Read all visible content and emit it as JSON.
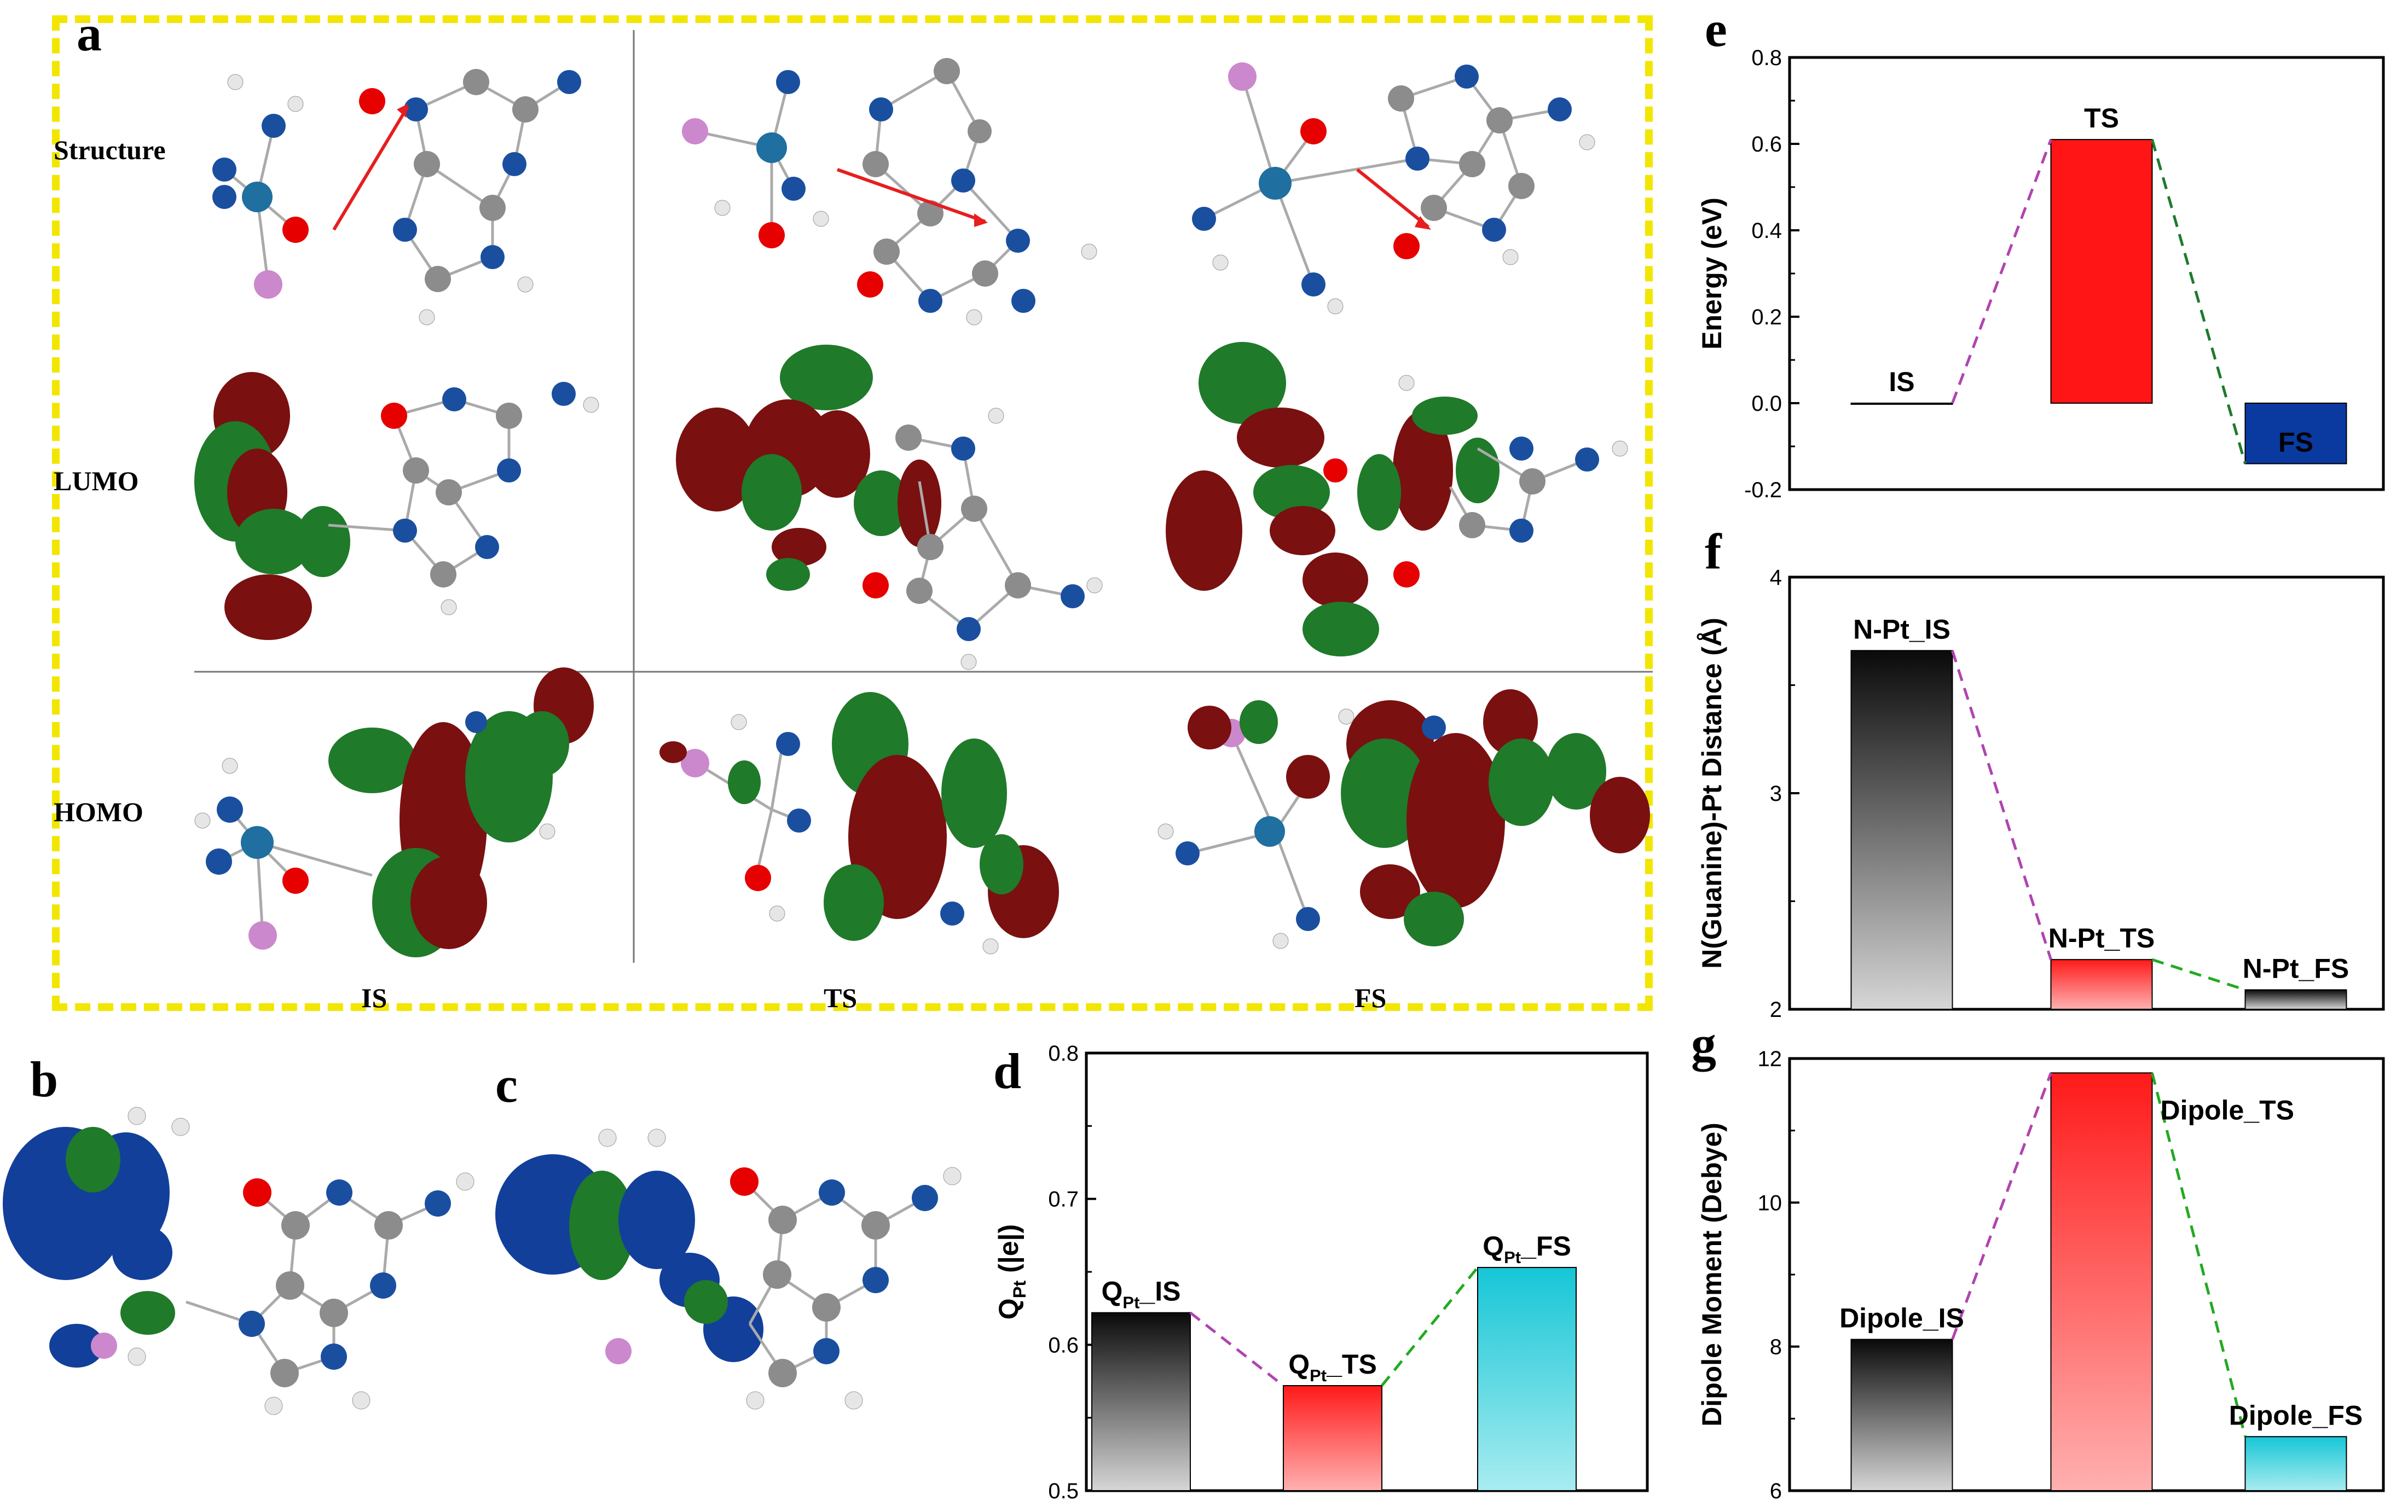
{
  "panel_a": {
    "label": "a",
    "rows": [
      "Structure",
      "LUMO",
      "HOMO"
    ],
    "cols": [
      "IS",
      "TS",
      "FS"
    ]
  },
  "panel_b": {
    "label": "b"
  },
  "panel_c": {
    "label": "c"
  },
  "colors": {
    "nitrogen": "#1a4fa0",
    "oxygen": "#e60000",
    "carbon": "#8c8c8c",
    "hydrogen": "#e6e6e6",
    "platinum": "#1f6fa0",
    "chlorine": "#cc88cc",
    "orbital_red": "#7a1010",
    "orbital_green": "#1f7a2a",
    "orbital_blue": "#123f9a",
    "dashed_border": "#f2e600"
  },
  "chart_data": [
    {
      "id": "d",
      "panel_label": "d",
      "type": "bar",
      "categories": [
        "Q_Pt_IS",
        "Q_Pt_TS",
        "Q_Pt_FS"
      ],
      "bar_labels": [
        {
          "main": "Q",
          "sub": "Pt",
          "suffix": "_IS"
        },
        {
          "main": "Q",
          "sub": "Pt",
          "suffix": "_TS"
        },
        {
          "main": "Q",
          "sub": "Pt",
          "suffix": "_FS"
        }
      ],
      "values": [
        0.622,
        0.572,
        0.653
      ],
      "ylim": [
        0.5,
        0.8
      ],
      "yticks": [
        "0.5",
        "0.6",
        "0.7",
        "0.8"
      ],
      "ylabel": {
        "main": "Q",
        "sub": "Pt",
        "suffix": " (|e|)"
      },
      "gradients": [
        [
          "#0a0a0a",
          "#d6d6d6"
        ],
        [
          "#ff1a1a",
          "#ffb0b0"
        ],
        [
          "#16c6d6",
          "#a8ecf0"
        ]
      ],
      "connector_colors": [
        "#b044b0",
        "#22aa22"
      ]
    },
    {
      "id": "e",
      "panel_label": "e",
      "type": "bar",
      "categories": [
        "IS",
        "TS",
        "FS"
      ],
      "values": [
        0.0,
        0.61,
        -0.14
      ],
      "ylim": [
        -0.2,
        0.8
      ],
      "yticks": [
        "-0.2",
        "0.0",
        "0.2",
        "0.4",
        "0.6",
        "0.8"
      ],
      "ylabel": "Energy (eV)",
      "colors": [
        "#000000",
        "#ff1515",
        "#0a3aa0"
      ],
      "connector_colors": [
        "#b044b0",
        "#1e7a2e"
      ]
    },
    {
      "id": "f",
      "panel_label": "f",
      "type": "bar",
      "categories": [
        "N-Pt_IS",
        "N-Pt_TS",
        "N-Pt_FS"
      ],
      "values": [
        3.66,
        2.23,
        2.09
      ],
      "ylim": [
        2,
        4
      ],
      "yticks": [
        "2",
        "3",
        "4"
      ],
      "ylabel": "N(Guanine)-Pt Distance (Å)",
      "gradients": [
        [
          "#0a0a0a",
          "#d6d6d6"
        ],
        [
          "#ff1a1a",
          "#ffb0b0"
        ],
        [
          "#0a0a0a",
          "#d6d6d6"
        ]
      ],
      "connector_colors": [
        "#b044b0",
        "#22aa22"
      ]
    },
    {
      "id": "g",
      "panel_label": "g",
      "type": "bar",
      "categories": [
        "Dipole_IS",
        "Dipole_TS",
        "Dipole_FS"
      ],
      "values": [
        8.1,
        11.8,
        6.75
      ],
      "ylim": [
        6,
        12
      ],
      "yticks": [
        "6",
        "8",
        "10",
        "12"
      ],
      "ylabel": "Dipole Moment (Debye)",
      "gradients": [
        [
          "#0a0a0a",
          "#d6d6d6"
        ],
        [
          "#ff1a1a",
          "#ffb0b0"
        ],
        [
          "#16c6d6",
          "#a8ecf0"
        ]
      ],
      "connector_colors": [
        "#b044b0",
        "#22aa22"
      ]
    }
  ]
}
